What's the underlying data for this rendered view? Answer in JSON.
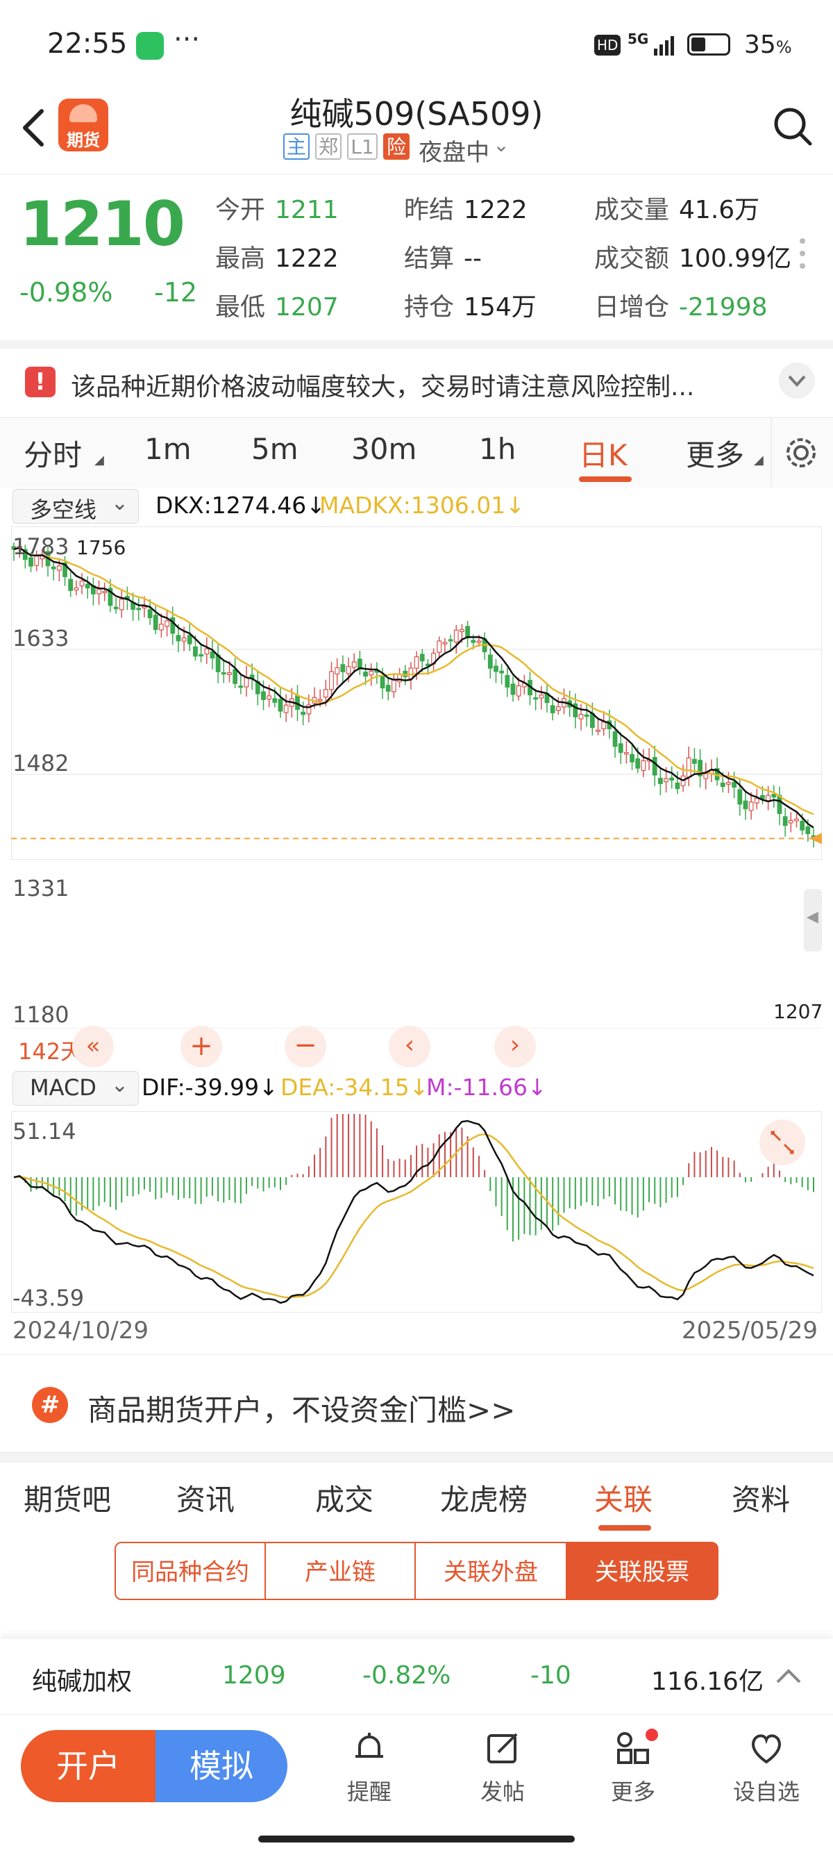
{
  "status": {
    "time": "22:55",
    "battery": "35",
    "battery_unit": "%",
    "hd": "HD",
    "network": "5G"
  },
  "header": {
    "title": "纯碱509(SA509)",
    "logo_text": "期货",
    "tags": [
      "主",
      "郑",
      "L1",
      "险"
    ],
    "session": "夜盘中"
  },
  "quote": {
    "price": "1210",
    "change_pct": "-0.98%",
    "change": "-12",
    "fields": [
      {
        "label": "今开",
        "value": "1211",
        "color": "#3aa94e"
      },
      {
        "label": "昨结",
        "value": "1222",
        "color": "#222222"
      },
      {
        "label": "成交量",
        "value": "41.6万",
        "color": "#222222"
      },
      {
        "label": "最高",
        "value": "1222",
        "color": "#222222"
      },
      {
        "label": "结算",
        "value": "--",
        "color": "#222222"
      },
      {
        "label": "成交额",
        "value": "100.99亿",
        "color": "#222222"
      },
      {
        "label": "最低",
        "value": "1207",
        "color": "#3aa94e"
      },
      {
        "label": "持仓",
        "value": "154万",
        "color": "#222222"
      },
      {
        "label": "日增仓",
        "value": "-21998",
        "color": "#3aa94e"
      }
    ]
  },
  "warning": {
    "text": "该品种近期价格波动幅度较大，交易时请注意风险控制..."
  },
  "period_tabs": {
    "items": [
      "分时",
      "1m",
      "5m",
      "30m",
      "1h",
      "日K",
      "更多"
    ],
    "active": 5
  },
  "main_indicator": {
    "select": "多空线",
    "dkx_label": "DKX:1274.46↓",
    "madkx_label": "MADKX:1306.01↓",
    "dkx_color": "#111111",
    "madkx_color": "#e7b92c"
  },
  "kline": {
    "y_labels": [
      "1783",
      "1633",
      "1482",
      "1331",
      "1180"
    ],
    "high_label": "1756",
    "last_label": "1207",
    "days": "142天"
  },
  "macd_indicator": {
    "select": "MACD",
    "dif_label": "DIF:-39.99↓",
    "dea_label": "DEA:-34.15↓",
    "m_label": "M:-11.66↓",
    "y_max": "51.14",
    "y_min": "-43.59",
    "date_start": "2024/10/29",
    "date_end": "2025/05/29"
  },
  "ad": {
    "text": "商品期货开户，不设资金门槛>>"
  },
  "sub_tabs": {
    "items": [
      "期货吧",
      "资讯",
      "成交",
      "龙虎榜",
      "关联",
      "资料"
    ],
    "active": 4
  },
  "segments": {
    "items": [
      "同品种合约",
      "产业链",
      "关联外盘",
      "关联股票"
    ],
    "active": 3
  },
  "related": {
    "name": "纯碱加权",
    "price": "1209",
    "pct": "-0.82%",
    "change": "-10",
    "amount": "116.16亿"
  },
  "bottom": {
    "open_account": "开户",
    "simulate": "模拟",
    "remind": "提醒",
    "post": "发帖",
    "more": "更多",
    "watchlist": "设自选"
  },
  "chart_data": {
    "type": "candlestick",
    "x_range": [
      "2024/10/29",
      "2025/05/29"
    ],
    "ylim": [
      1180,
      1783
    ],
    "high": 1756,
    "last_low": 1207,
    "close_path": [
      1745,
      1738,
      1742,
      1720,
      1700,
      1690,
      1676,
      1668,
      1660,
      1648,
      1640,
      1632,
      1610,
      1590,
      1578,
      1565,
      1540,
      1522,
      1510,
      1498,
      1482,
      1470,
      1455,
      1448,
      1462,
      1480,
      1510,
      1545,
      1530,
      1512,
      1500,
      1505,
      1520,
      1540,
      1560,
      1575,
      1590,
      1605,
      1560,
      1522,
      1505,
      1490,
      1478,
      1470,
      1460,
      1450,
      1442,
      1430,
      1410,
      1385,
      1360,
      1348,
      1330,
      1320,
      1310,
      1345,
      1340,
      1325,
      1300,
      1285,
      1270,
      1290,
      1265,
      1245,
      1225,
      1210
    ],
    "macd": {
      "y_range": [
        -43.59,
        51.14
      ]
    }
  }
}
